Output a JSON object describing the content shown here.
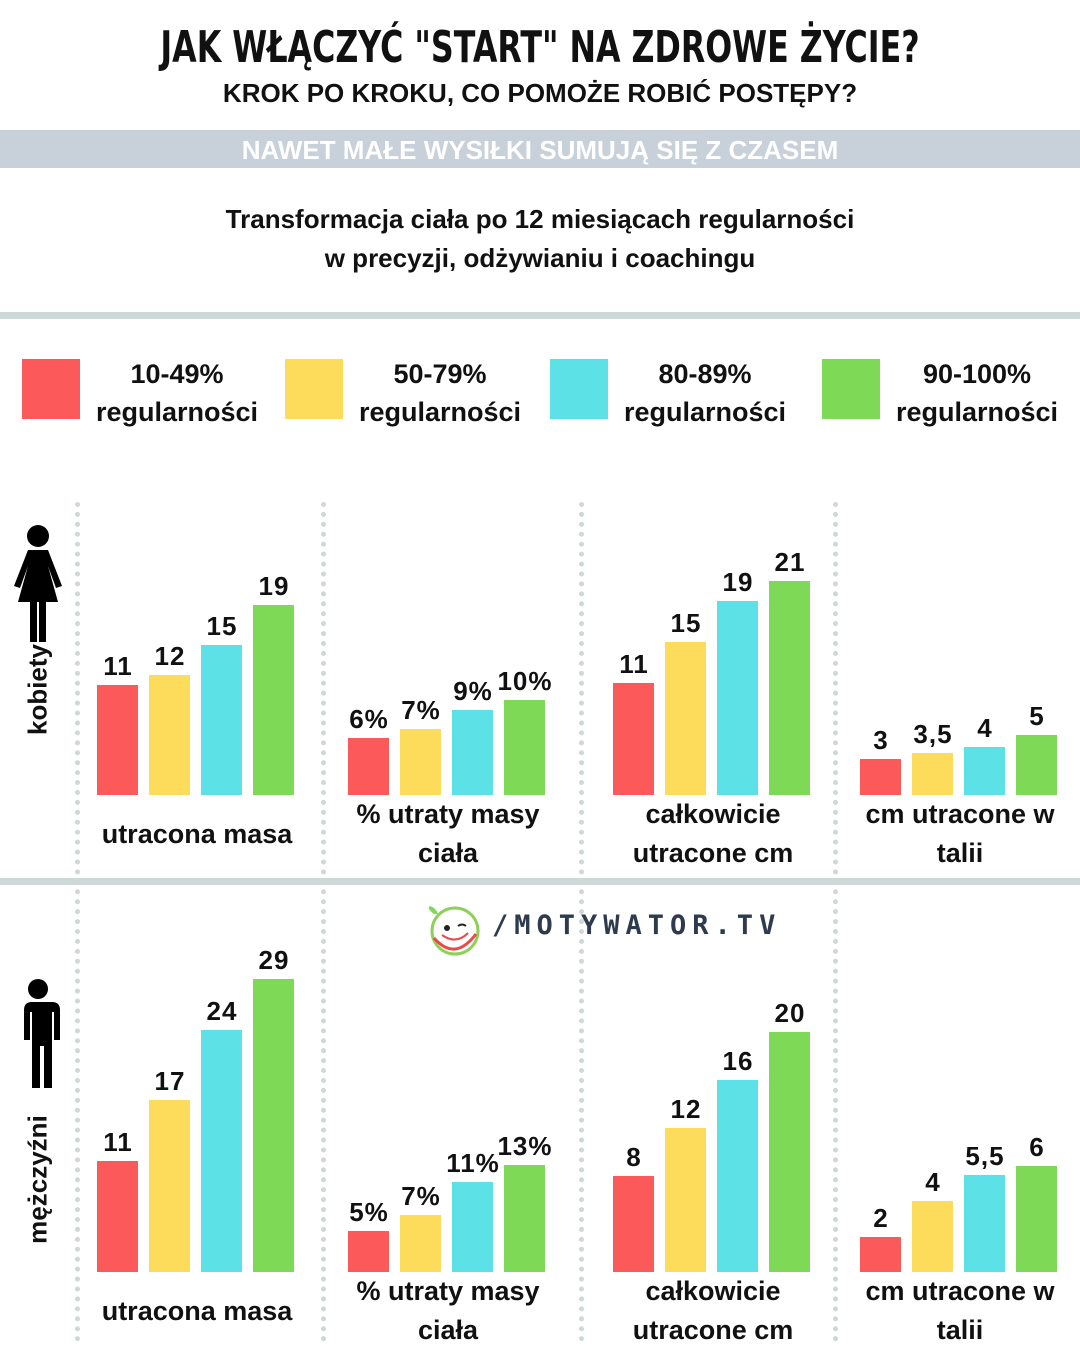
{
  "header": {
    "title": "JAK WŁĄCZYĆ \"START\" NA ZDROWE ŻYCIE?",
    "subtitle": "KROK PO KROKU, CO POMOŻE ROBIĆ POSTĘPY?",
    "band": "NAWET MAŁE  WYSIŁKI SUMUJĄ SIĘ Z CZASEM",
    "desc_line1": "Transformacja ciała po 12 miesiącach regularności",
    "desc_line2": "w precyzji, odżywianiu i coachingu"
  },
  "logo": {
    "text": "/MOTYWATOR.TV"
  },
  "chart_data": {
    "type": "bar",
    "legend": [
      {
        "line1": "10-49%",
        "line2": "regularności",
        "color": "#fc5a5a"
      },
      {
        "line1": "50-79%",
        "line2": "regularności",
        "color": "#fddc5c"
      },
      {
        "line1": "80-89%",
        "line2": "regularności",
        "color": "#5ce1e6"
      },
      {
        "line1": "90-100%",
        "line2": "regularności",
        "color": "#7ed957"
      }
    ],
    "legend_placement": "top",
    "groups": [
      {
        "label": "kobiety",
        "icon": "woman-icon",
        "panels": [
          {
            "line1": "utracona masa",
            "line2": "",
            "values": [
              11,
              12,
              15,
              19
            ],
            "labels": [
              "11",
              "12",
              "15",
              "19"
            ]
          },
          {
            "line1": "% utraty masy",
            "line2": "ciała",
            "values": [
              6,
              7,
              9,
              10
            ],
            "labels": [
              "6%",
              "7%",
              "9%",
              "10%"
            ]
          },
          {
            "line1": "całkowicie",
            "line2": "utracone cm",
            "values": [
              11,
              15,
              19,
              21
            ],
            "labels": [
              "11",
              "15",
              "19",
              "21"
            ]
          },
          {
            "line1": "cm utracone w",
            "line2": "talii",
            "values": [
              3,
              3.5,
              4,
              5
            ],
            "labels": [
              "3",
              "3,5",
              "4",
              "5"
            ]
          }
        ]
      },
      {
        "label": "mężczyźni",
        "icon": "man-icon",
        "panels": [
          {
            "line1": "utracona masa",
            "line2": "",
            "values": [
              11,
              17,
              24,
              29
            ],
            "labels": [
              "11",
              "17",
              "24",
              "29"
            ]
          },
          {
            "line1": "% utraty masy",
            "line2": "ciała",
            "values": [
              5,
              7,
              11,
              13
            ],
            "labels": [
              "5%",
              "7%",
              "11%",
              "13%"
            ]
          },
          {
            "line1": "całkowicie",
            "line2": "utracone cm",
            "values": [
              8,
              12,
              16,
              20
            ],
            "labels": [
              "8",
              "12",
              "16",
              "20"
            ]
          },
          {
            "line1": "cm utracone w",
            "line2": "talii",
            "values": [
              2,
              4,
              5.5,
              6
            ],
            "labels": [
              "2",
              "4",
              "5,5",
              "6"
            ]
          }
        ]
      }
    ]
  }
}
